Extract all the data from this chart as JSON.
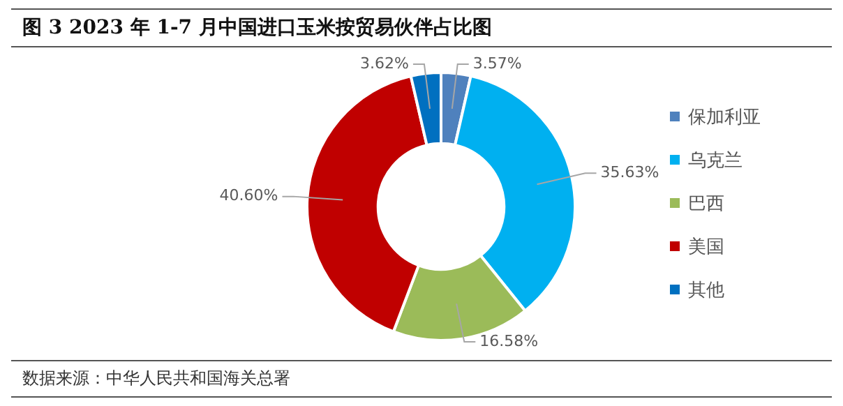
{
  "chart_data": {
    "type": "donut",
    "title": "图 3 2023 年 1-7 月中国进口玉米按贸易伙伴占比图",
    "categories": [
      "保加利亚",
      "乌克兰",
      "巴西",
      "美国",
      "其他"
    ],
    "values": [
      3.57,
      35.63,
      16.58,
      40.6,
      3.62
    ],
    "value_labels": [
      "3.57%",
      "35.63%",
      "16.58%",
      "40.60%",
      "3.62%"
    ],
    "colors": [
      "#4f81bd",
      "#00b0f0",
      "#9bbb59",
      "#c00000",
      "#0070c0"
    ],
    "legend": "right",
    "annotations": [
      "数据来源：中华人民共和国海关总署"
    ]
  }
}
